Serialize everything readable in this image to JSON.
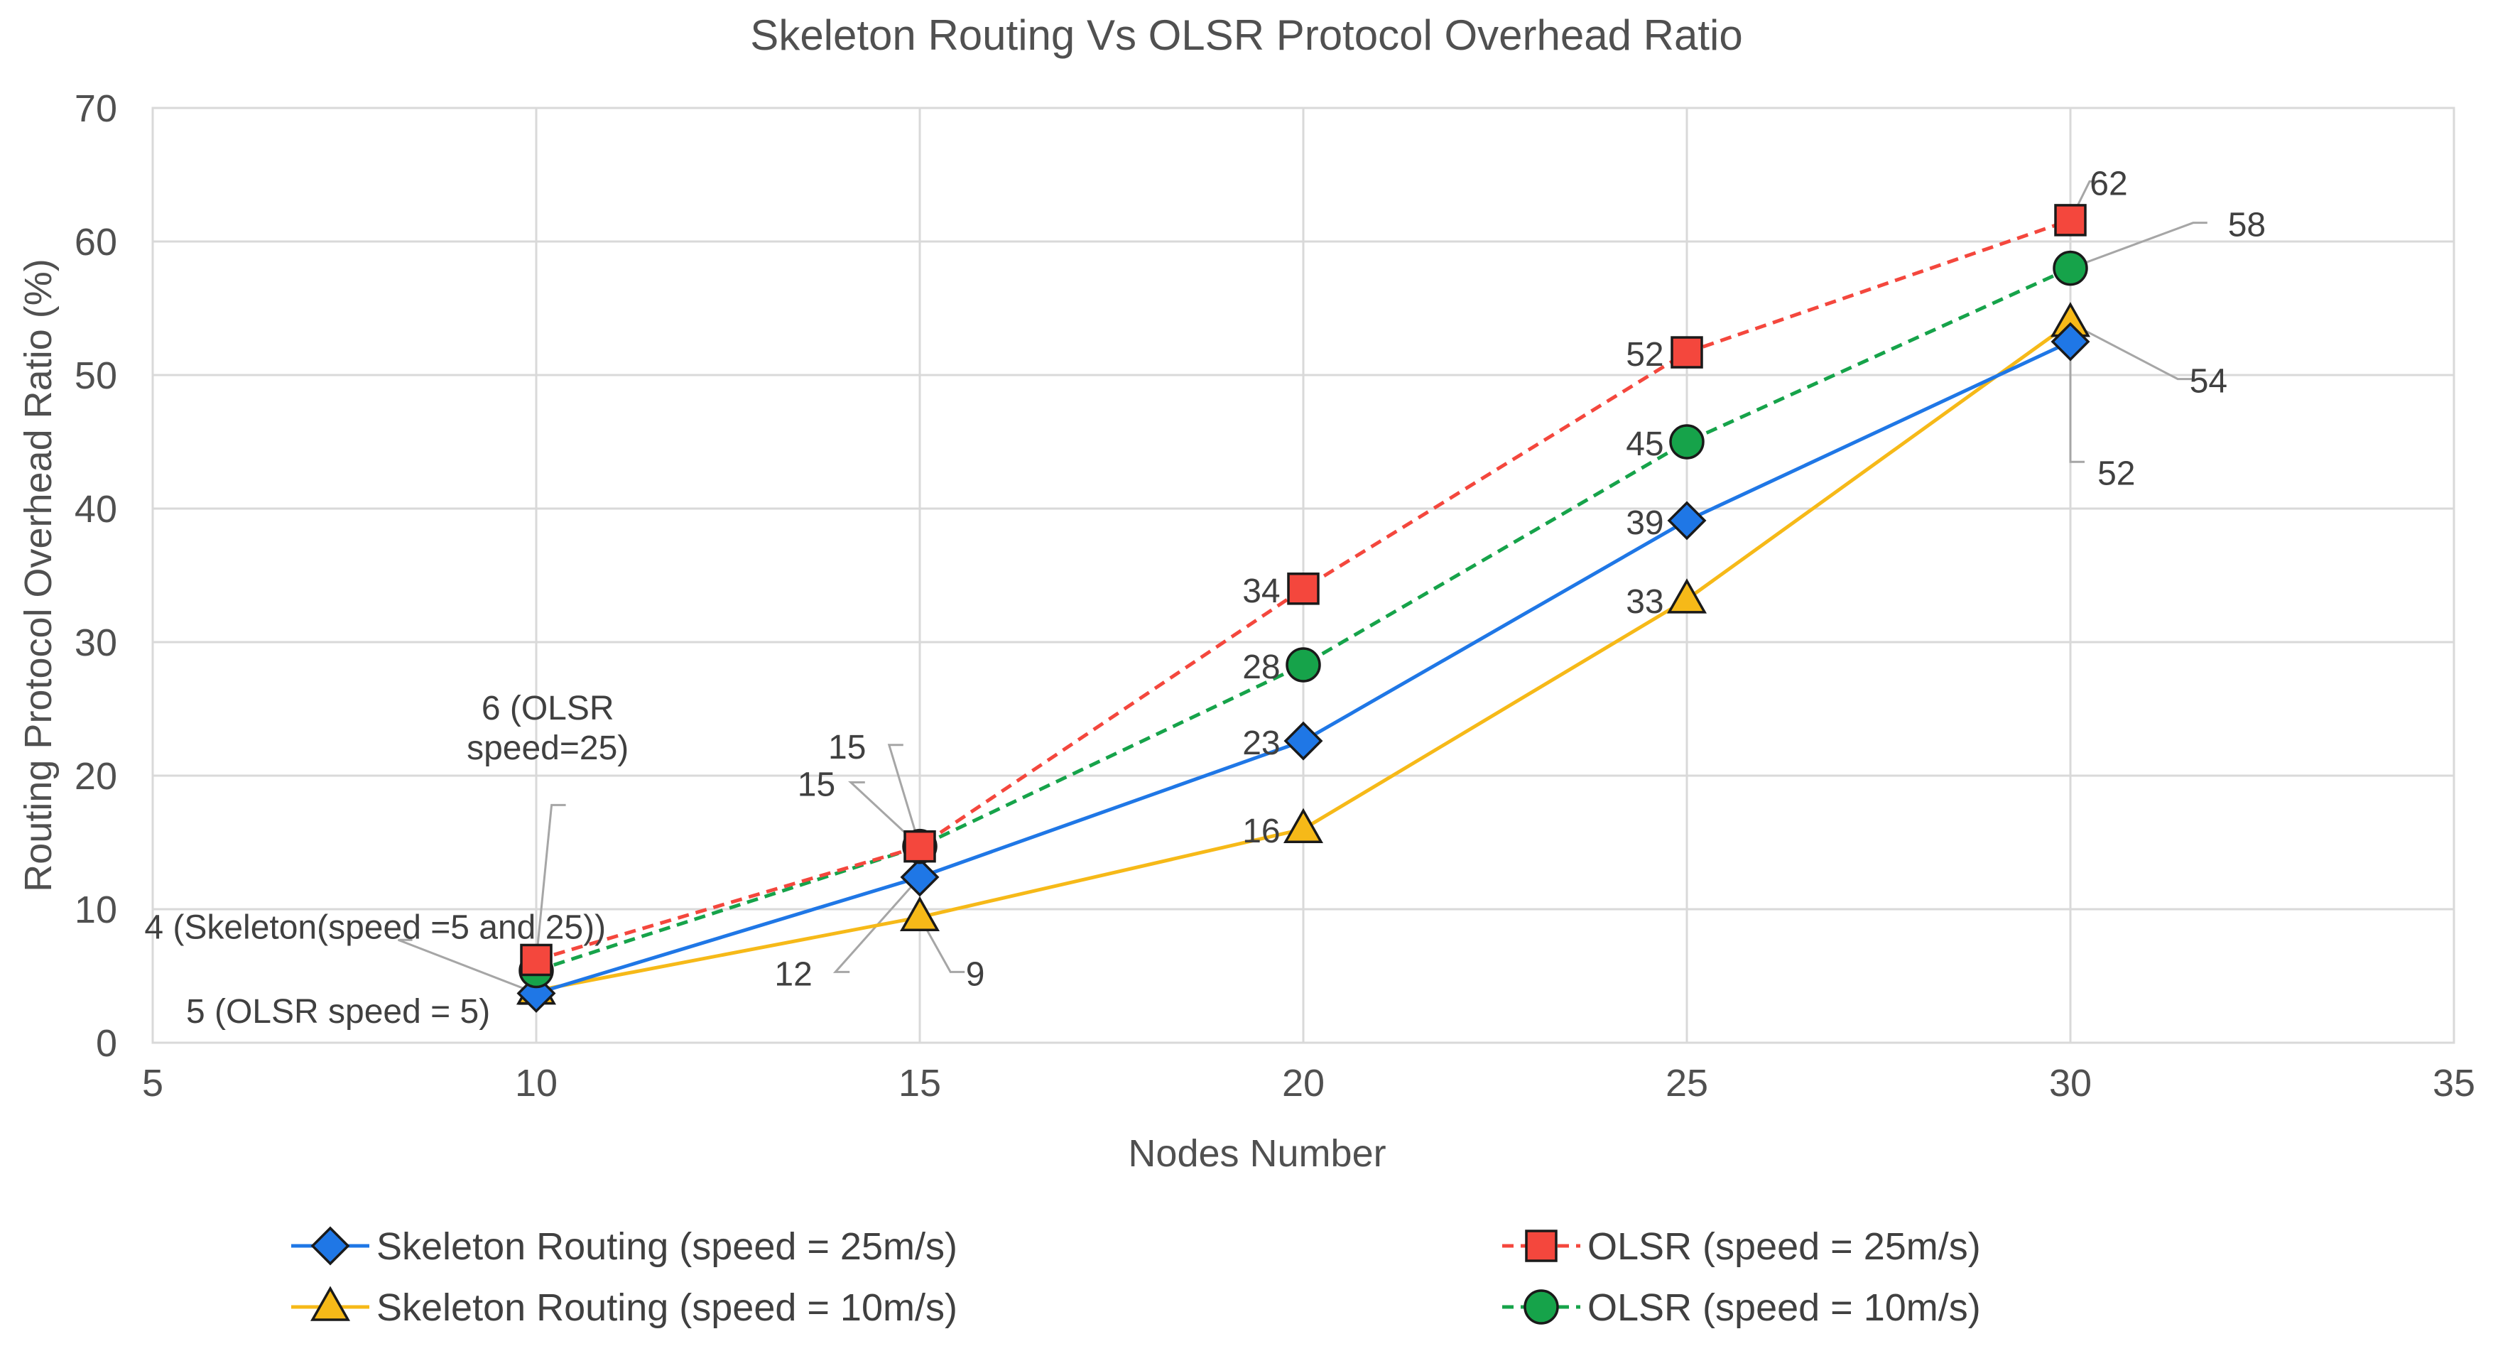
{
  "chart_data": {
    "type": "line",
    "title": "Skeleton Routing Vs OLSR Protocol Overhead Ratio",
    "xlabel": "Nodes Number",
    "ylabel": "Routing Protocol Overhead Ratio (%)",
    "xlim": [
      5,
      35
    ],
    "ylim": [
      0,
      70
    ],
    "xticks": [
      5,
      10,
      15,
      20,
      25,
      30,
      35
    ],
    "yticks": [
      0,
      10,
      20,
      30,
      40,
      50,
      60,
      70
    ],
    "grid": true,
    "legend_position": "bottom",
    "x": [
      10,
      15,
      20,
      25,
      30
    ],
    "series": [
      {
        "name": "Skeleton Routing (speed = 25m/s)",
        "values": [
          3.7,
          12.4,
          22.6,
          39.1,
          52.5
        ],
        "color": "#1f77e6",
        "dash": "solid",
        "marker": "diamond",
        "marker_color": "#1f77e6"
      },
      {
        "name": "OLSR (speed = 25m/s)",
        "values": [
          6.2,
          14.7,
          34.0,
          51.7,
          61.6
        ],
        "color": "#f4473d",
        "dash": "dashed",
        "marker": "square",
        "marker_color": "#f4473d"
      },
      {
        "name": "Skeleton Routing (speed = 10m/s)",
        "values": [
          3.9,
          9.4,
          16.0,
          33.2,
          53.9
        ],
        "color": "#f6b918",
        "dash": "solid",
        "marker": "triangle",
        "marker_color": "#f6b918"
      },
      {
        "name": "OLSR (speed = 10m/s)",
        "values": [
          5.4,
          14.7,
          28.3,
          45.0,
          58.0
        ],
        "color": "#16a34a",
        "dash": "dashed",
        "marker": "circle",
        "marker_color": "#16a34a"
      }
    ],
    "annotations": [
      {
        "text": "6 (OLSR",
        "text2": "speed=25)",
        "x": 10,
        "y": 6.2,
        "lx": 10.2,
        "ly": 17.8,
        "tx": 10.15,
        "ty": 25.2,
        "anchor": "middle"
      },
      {
        "text": "4 (Skeleton(speed =5 and 25))",
        "x": 10,
        "y": 3.7,
        "lx": 8.2,
        "ly": 7.7,
        "tx": 7.9,
        "ty": 8.8,
        "anchor": "middle"
      },
      {
        "text": "5 (OLSR speed = 5)",
        "x": 10,
        "y": 3.9,
        "lx": 9.8,
        "ly": 2.9,
        "tx": 9.4,
        "ty": 2.5,
        "anchor": "end"
      },
      {
        "text": "15",
        "x": 15,
        "y": 14.7,
        "lx": 14.6,
        "ly": 22.3,
        "tx": 14.3,
        "ty": 22.3,
        "anchor": "end"
      },
      {
        "text": "15",
        "x": 15,
        "y": 14.7,
        "lx": 14.1,
        "ly": 19.5,
        "tx": 13.9,
        "ty": 19.5,
        "anchor": "end"
      },
      {
        "text": "12",
        "x": 15,
        "y": 12.4,
        "lx": 13.9,
        "ly": 5.3,
        "tx": 13.6,
        "ty": 5.3,
        "anchor": "end"
      },
      {
        "text": "9",
        "x": 15,
        "y": 9.4,
        "lx": 15.4,
        "ly": 5.3,
        "tx": 15.6,
        "ty": 5.3,
        "anchor": "start"
      },
      {
        "text": "34",
        "x": 20,
        "y": 34.0,
        "tx": 19.7,
        "ty": 34.0,
        "anchor": "end"
      },
      {
        "text": "28",
        "x": 20,
        "y": 28.3,
        "tx": 19.7,
        "ty": 28.3,
        "anchor": "end"
      },
      {
        "text": "23",
        "x": 20,
        "y": 22.6,
        "tx": 19.7,
        "ty": 22.6,
        "anchor": "end"
      },
      {
        "text": "16",
        "x": 20,
        "y": 16.0,
        "tx": 19.7,
        "ty": 16.0,
        "anchor": "end"
      },
      {
        "text": "52",
        "x": 25,
        "y": 51.7,
        "tx": 24.7,
        "ty": 51.7,
        "anchor": "end"
      },
      {
        "text": "45",
        "x": 25,
        "y": 45.0,
        "tx": 24.7,
        "ty": 45.0,
        "anchor": "end"
      },
      {
        "text": "39",
        "x": 25,
        "y": 39.1,
        "tx": 24.7,
        "ty": 39.1,
        "anchor": "end"
      },
      {
        "text": "33",
        "x": 25,
        "y": 33.2,
        "tx": 24.7,
        "ty": 33.2,
        "anchor": "end"
      },
      {
        "text": "62",
        "x": 30,
        "y": 61.6,
        "lx": 30.25,
        "ly": 64.5,
        "tx": 30.5,
        "ty": 64.5,
        "anchor": "middle"
      },
      {
        "text": "58",
        "x": 30,
        "y": 58.0,
        "lx": 31.6,
        "ly": 61.4,
        "tx": 32.3,
        "ty": 61.4,
        "anchor": "middle"
      },
      {
        "text": "54",
        "x": 30,
        "y": 53.9,
        "lx": 31.4,
        "ly": 49.7,
        "tx": 31.8,
        "ty": 49.7,
        "anchor": "middle"
      },
      {
        "text": "52",
        "x": 30,
        "y": 52.5,
        "lx": 30.0,
        "ly": 43.5,
        "tx": 30.6,
        "ty": 42.8,
        "anchor": "middle"
      }
    ]
  }
}
